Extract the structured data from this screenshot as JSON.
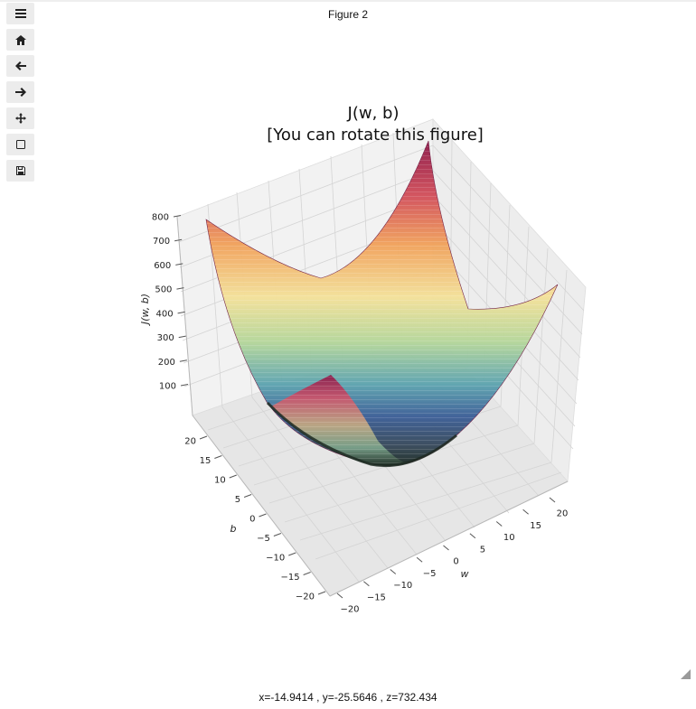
{
  "window": {
    "title": "Figure 2"
  },
  "toolbar": {
    "buttons": [
      {
        "name": "menu",
        "icon": "hamburger-icon"
      },
      {
        "name": "home",
        "icon": "home-icon"
      },
      {
        "name": "back",
        "icon": "arrow-left-icon"
      },
      {
        "name": "forward",
        "icon": "arrow-right-icon"
      },
      {
        "name": "pan",
        "icon": "move-icon"
      },
      {
        "name": "zoom",
        "icon": "square-icon"
      },
      {
        "name": "save",
        "icon": "floppy-icon"
      }
    ]
  },
  "status": {
    "coords": "x=-14.9414 , y=-25.5646 , z=732.434"
  },
  "chart_data": {
    "type": "surface",
    "title_line1": "J(w, b)",
    "title_line2": "[You can rotate this figure]",
    "xlabel": "w",
    "ylabel": "b",
    "zlabel": "J(w, b)",
    "xlim": [
      -20,
      20
    ],
    "ylim": [
      -20,
      20
    ],
    "zlim": [
      0,
      800
    ],
    "w_ticks": [
      "−20",
      "−15",
      "−10",
      "−5",
      "0",
      "5",
      "10",
      "15",
      "20"
    ],
    "b_ticks": [
      "20",
      "15",
      "10",
      "5",
      "0",
      "−5",
      "−10",
      "−15",
      "−20"
    ],
    "z_ticks": [
      "800",
      "700",
      "600",
      "500",
      "400",
      "300",
      "200",
      "100"
    ],
    "surface": "bowl-shaped cost function, minimum near w=0, b=0",
    "colormap": "Spectral_r",
    "grid": true
  }
}
